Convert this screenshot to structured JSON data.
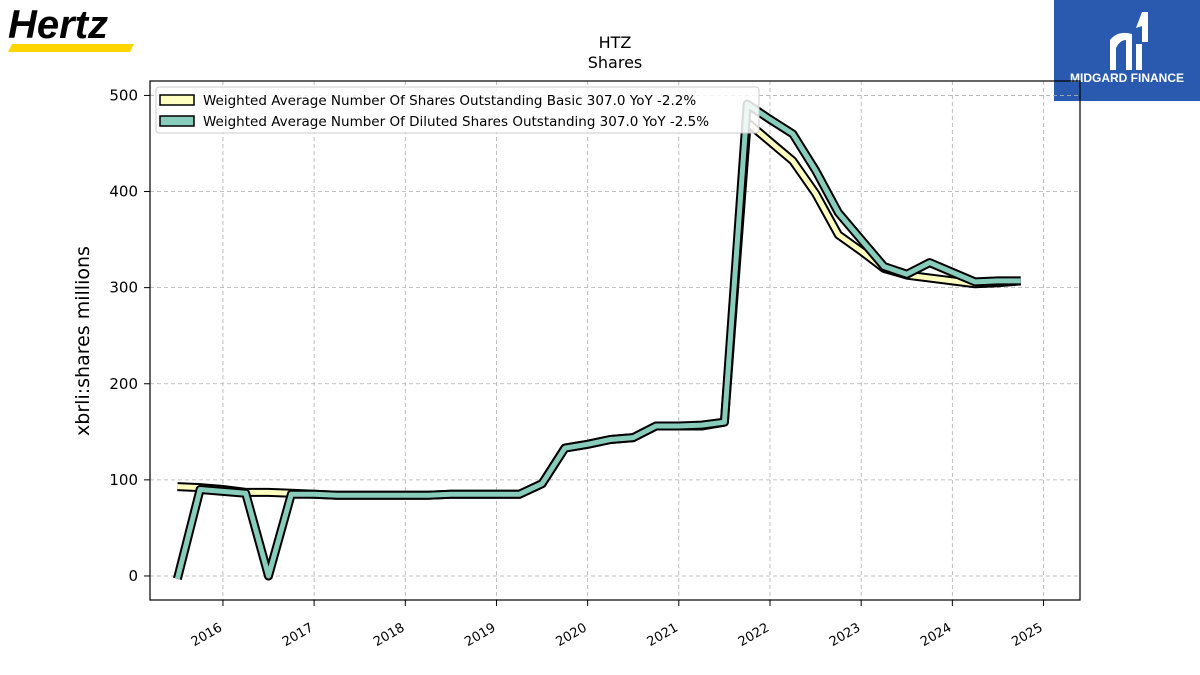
{
  "logos": {
    "left": {
      "text": "Hertz",
      "bar_color": "#ffd500"
    },
    "right": {
      "text": "MIDGARD FINANCE",
      "background": "#2a5ab0"
    }
  },
  "chart_data": {
    "type": "line",
    "title": "HTZ",
    "subtitle": "Shares",
    "xlabel": "",
    "ylabel": "xbrli:shares millions",
    "xlim": [
      2015.2,
      2025.4
    ],
    "ylim": [
      -25,
      515
    ],
    "xticks": [
      2016,
      2017,
      2018,
      2019,
      2020,
      2021,
      2022,
      2023,
      2024,
      2025
    ],
    "yticks": [
      0,
      100,
      200,
      300,
      400,
      500
    ],
    "grid": true,
    "legend_position": "top-left",
    "series": [
      {
        "name": "Weighted Average Number Of Shares Outstanding Basic  307.0 YoY -2.2%",
        "color": "#ffffc0",
        "x": [
          2015.5,
          2015.75,
          2016.0,
          2016.25,
          2016.5,
          2016.75,
          2017.0,
          2017.25,
          2017.5,
          2017.75,
          2018.0,
          2018.25,
          2018.5,
          2018.75,
          2019.0,
          2019.25,
          2019.5,
          2019.75,
          2020.0,
          2020.25,
          2020.5,
          2020.75,
          2021.0,
          2021.25,
          2021.5,
          2021.75,
          2022.0,
          2022.25,
          2022.5,
          2022.75,
          2023.0,
          2023.25,
          2023.5,
          2023.75,
          2024.0,
          2024.25,
          2024.5,
          2024.75
        ],
        "y": [
          93,
          92,
          90,
          87,
          87,
          86,
          85,
          84,
          84,
          84,
          84,
          84,
          85,
          85,
          85,
          85,
          96,
          133,
          137,
          142,
          144,
          156,
          156,
          156,
          160,
          472,
          452,
          432,
          398,
          355,
          338,
          320,
          313,
          310,
          307,
          304,
          305,
          307
        ]
      },
      {
        "name": "Weighted Average Number Of Diluted Shares Outstanding  307.0 YoY -2.5%",
        "color": "#88ccbb",
        "x": [
          2015.5,
          2015.75,
          2016.0,
          2016.25,
          2016.5,
          2016.75,
          2017.0,
          2017.25,
          2017.5,
          2017.75,
          2018.0,
          2018.25,
          2018.5,
          2018.75,
          2019.0,
          2019.25,
          2019.5,
          2019.75,
          2020.0,
          2020.25,
          2020.5,
          2020.75,
          2021.0,
          2021.25,
          2021.5,
          2021.75,
          2022.0,
          2022.25,
          2022.5,
          2022.75,
          2023.0,
          2023.25,
          2023.5,
          2023.75,
          2024.0,
          2024.25,
          2024.5,
          2024.75
        ],
        "y": [
          -3,
          90,
          88,
          86,
          0,
          85,
          85,
          84,
          84,
          84,
          84,
          84,
          85,
          85,
          85,
          85,
          96,
          133,
          137,
          142,
          144,
          156,
          156,
          157,
          160,
          491,
          475,
          460,
          422,
          378,
          350,
          322,
          314,
          326,
          316,
          306,
          307,
          307
        ]
      }
    ]
  }
}
